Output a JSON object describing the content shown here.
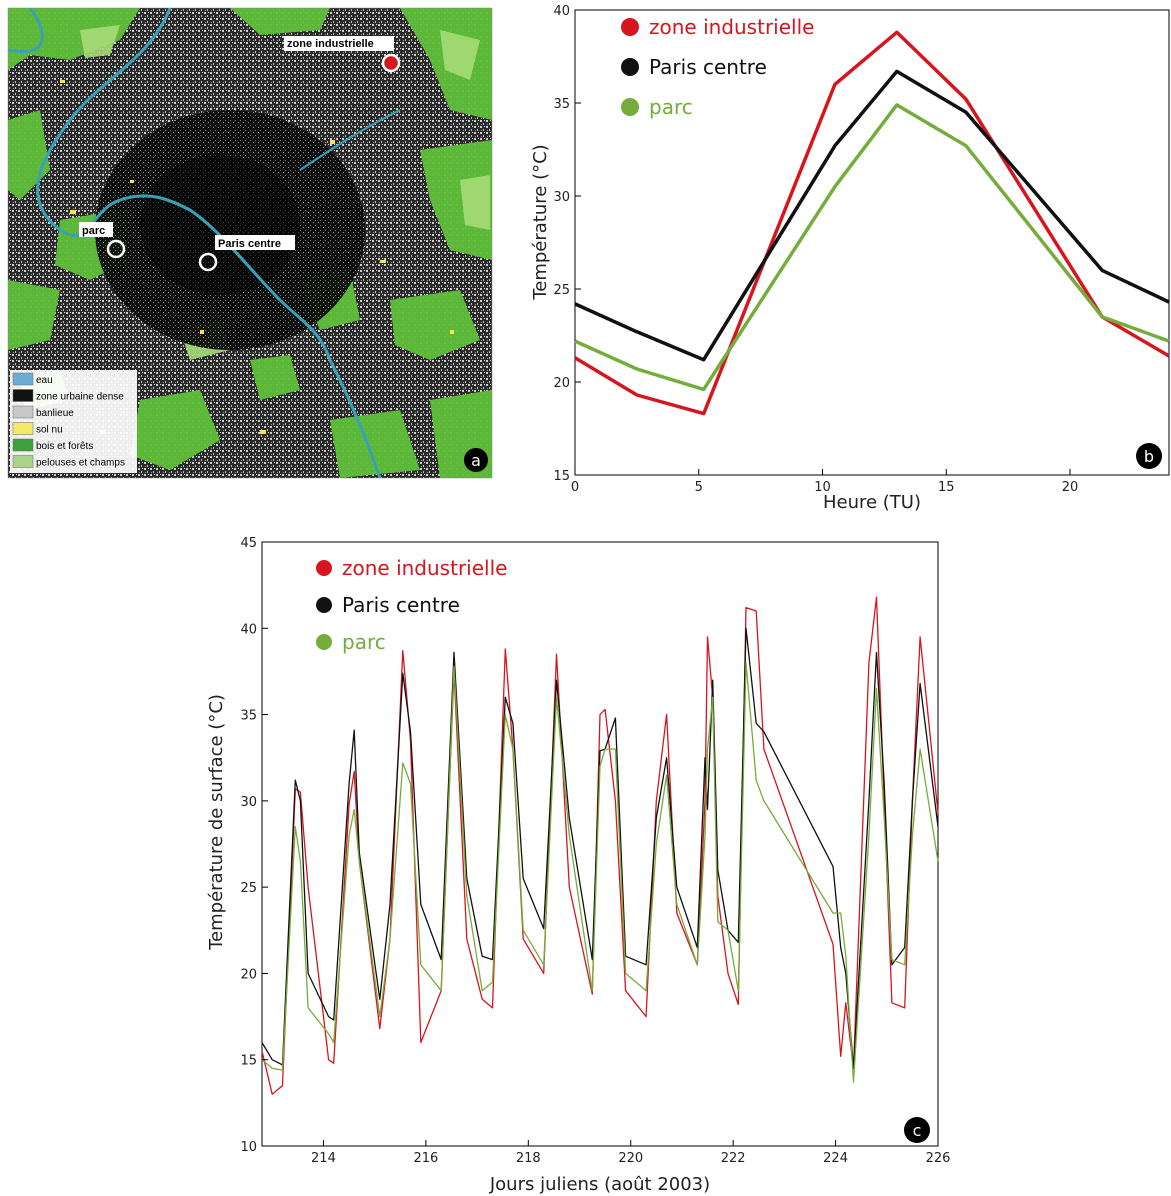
{
  "colors": {
    "zone_industrielle": "#d7151f",
    "paris_centre": "#111111",
    "parc": "#74ad3c",
    "water": "#3aa0b8",
    "urban_dense": "#111111",
    "banlieue": "#b8b8b8",
    "sol_nu": "#f2e35a",
    "bois": "#3ca33c",
    "pelouses": "#9fd27c"
  },
  "map": {
    "badge": "a",
    "callouts": [
      {
        "id": "zone-industrielle",
        "label": "zone industrielle",
        "marker": "filled-red"
      },
      {
        "id": "parc",
        "label": "parc",
        "marker": "ring-white"
      },
      {
        "id": "paris-centre",
        "label": "Paris centre",
        "marker": "ring-white"
      }
    ],
    "legend": [
      {
        "label": "eau",
        "color": "#6aaed6"
      },
      {
        "label": "zone urbaine dense",
        "color": "#111111"
      },
      {
        "label": "banlieue",
        "color": "#c8c8c8"
      },
      {
        "label": "sol nu",
        "color": "#f5e86a"
      },
      {
        "label": "bois et forêts",
        "color": "#3ca33c"
      },
      {
        "label": "pelouses et champs",
        "color": "#a9d48a"
      }
    ]
  },
  "chart_data": [
    {
      "panel": "b",
      "type": "line",
      "xlabel": "Heure (TU)",
      "ylabel": "Température (°C)",
      "xlim": [
        0,
        24
      ],
      "ylim": [
        15,
        40
      ],
      "xticks": [
        0,
        5,
        10,
        15,
        20
      ],
      "yticks": [
        15,
        20,
        25,
        30,
        35,
        40
      ],
      "legend_position": "top-left",
      "series": [
        {
          "name": "zone industrielle",
          "color": "#d7151f",
          "x": [
            0,
            2.5,
            5.2,
            10.5,
            13.0,
            15.8,
            21.3,
            24
          ],
          "y": [
            21.3,
            19.3,
            18.3,
            36.0,
            38.8,
            35.2,
            23.5,
            21.4
          ]
        },
        {
          "name": "Paris centre",
          "color": "#111111",
          "x": [
            0,
            2.5,
            5.2,
            10.5,
            13.0,
            15.8,
            21.3,
            24
          ],
          "y": [
            24.2,
            22.7,
            21.2,
            32.7,
            36.7,
            34.5,
            26.0,
            24.3
          ]
        },
        {
          "name": "parc",
          "color": "#74ad3c",
          "x": [
            0,
            2.5,
            5.2,
            10.5,
            13.0,
            15.8,
            21.3,
            24
          ],
          "y": [
            22.2,
            20.7,
            19.6,
            30.5,
            34.9,
            32.7,
            23.5,
            22.2
          ]
        }
      ]
    },
    {
      "panel": "c",
      "type": "line",
      "xlabel": "Jours juliens (août 2003)",
      "ylabel": "Température de surface (°C)",
      "xlim": [
        212.8,
        226
      ],
      "ylim": [
        10,
        45
      ],
      "xticks": [
        214,
        216,
        218,
        220,
        222,
        224,
        226
      ],
      "yticks": [
        10,
        15,
        20,
        25,
        30,
        35,
        40,
        45
      ],
      "legend_position": "top-left",
      "series": [
        {
          "name": "zone industrielle",
          "color": "#d7151f",
          "x": [
            212.8,
            213.0,
            213.2,
            213.45,
            213.55,
            213.7,
            214.1,
            214.2,
            214.5,
            214.6,
            214.7,
            215.1,
            215.3,
            215.55,
            215.7,
            215.9,
            216.3,
            216.55,
            216.8,
            217.1,
            217.3,
            217.55,
            217.7,
            217.9,
            218.3,
            218.55,
            218.8,
            219.25,
            219.4,
            219.5,
            219.7,
            219.9,
            220.3,
            220.5,
            220.7,
            220.9,
            221.3,
            221.45,
            221.5,
            221.6,
            221.7,
            221.9,
            222.1,
            222.25,
            222.45,
            222.6,
            223.95,
            224.1,
            224.2,
            224.35,
            224.65,
            224.8,
            224.95,
            225.1,
            225.35,
            225.5,
            225.65,
            226.0
          ],
          "y": [
            15.5,
            13.0,
            13.5,
            30.7,
            30.5,
            25.0,
            15.0,
            14.8,
            29.8,
            31.7,
            26.5,
            16.8,
            22.0,
            38.7,
            33.5,
            16.0,
            19.0,
            37.5,
            22.0,
            18.5,
            18.0,
            38.8,
            33.0,
            22.0,
            20.0,
            38.5,
            25.0,
            18.8,
            35.0,
            35.3,
            30.0,
            19.0,
            17.5,
            30.0,
            35.0,
            23.5,
            20.5,
            30.0,
            39.5,
            36.0,
            24.5,
            20.0,
            18.2,
            41.2,
            41.0,
            33.0,
            21.7,
            15.2,
            18.3,
            14.5,
            38.0,
            41.8,
            30.0,
            18.3,
            18.0,
            30.0,
            39.5,
            29.3
          ]
        },
        {
          "name": "Paris centre",
          "color": "#111111",
          "x": [
            212.8,
            213.0,
            213.2,
            213.45,
            213.55,
            213.7,
            214.1,
            214.2,
            214.5,
            214.6,
            214.7,
            215.1,
            215.3,
            215.55,
            215.7,
            215.9,
            216.3,
            216.55,
            216.8,
            217.1,
            217.3,
            217.55,
            217.7,
            217.9,
            218.3,
            218.55,
            218.8,
            219.25,
            219.4,
            219.5,
            219.7,
            219.9,
            220.3,
            220.5,
            220.7,
            220.9,
            221.3,
            221.45,
            221.5,
            221.6,
            221.7,
            221.9,
            222.1,
            222.25,
            222.45,
            222.6,
            223.95,
            224.1,
            224.2,
            224.35,
            224.65,
            224.8,
            224.95,
            225.1,
            225.35,
            225.5,
            225.65,
            226.0
          ],
          "y": [
            16.0,
            15.0,
            14.7,
            31.2,
            30.0,
            20.0,
            17.5,
            17.3,
            31.0,
            34.1,
            27.0,
            18.5,
            24.0,
            37.4,
            34.0,
            24.0,
            20.8,
            38.6,
            25.5,
            21.0,
            20.8,
            36.0,
            34.5,
            25.5,
            22.6,
            37.0,
            29.0,
            20.8,
            32.9,
            33.0,
            34.8,
            21.0,
            20.5,
            29.0,
            32.5,
            25.0,
            21.5,
            32.5,
            29.5,
            37.0,
            26.0,
            22.5,
            21.8,
            40.0,
            34.5,
            34.0,
            26.2,
            21.5,
            20.0,
            14.5,
            30.0,
            38.6,
            31.0,
            20.5,
            21.5,
            30.0,
            36.8,
            28.5
          ]
        },
        {
          "name": "parc",
          "color": "#74ad3c",
          "x": [
            212.8,
            213.0,
            213.2,
            213.45,
            213.55,
            213.7,
            214.1,
            214.2,
            214.5,
            214.6,
            214.7,
            215.1,
            215.3,
            215.55,
            215.7,
            215.9,
            216.3,
            216.55,
            216.8,
            217.1,
            217.3,
            217.55,
            217.7,
            217.9,
            218.3,
            218.55,
            218.8,
            219.25,
            219.4,
            219.5,
            219.7,
            219.9,
            220.3,
            220.5,
            220.7,
            220.9,
            221.3,
            221.45,
            221.5,
            221.6,
            221.7,
            221.9,
            222.1,
            222.25,
            222.45,
            222.6,
            223.95,
            224.1,
            224.2,
            224.35,
            224.65,
            224.8,
            224.95,
            225.1,
            225.35,
            225.5,
            225.65,
            226.0
          ],
          "y": [
            15.0,
            14.5,
            14.4,
            28.5,
            26.5,
            18.0,
            16.5,
            16.0,
            28.0,
            29.5,
            26.5,
            17.5,
            22.0,
            32.2,
            31.0,
            20.5,
            19.0,
            37.8,
            24.5,
            19.0,
            19.5,
            35.0,
            33.0,
            22.5,
            20.5,
            36.0,
            28.0,
            19.0,
            32.0,
            33.0,
            33.0,
            20.0,
            19.0,
            27.5,
            31.5,
            24.0,
            20.5,
            28.0,
            33.0,
            36.0,
            23.0,
            22.5,
            19.0,
            38.0,
            31.2,
            30.0,
            23.5,
            23.5,
            21.0,
            13.7,
            28.0,
            36.5,
            29.0,
            20.8,
            20.5,
            28.0,
            33.0,
            26.5
          ]
        }
      ]
    }
  ],
  "panel_badges": {
    "b": "b",
    "c": "c"
  }
}
